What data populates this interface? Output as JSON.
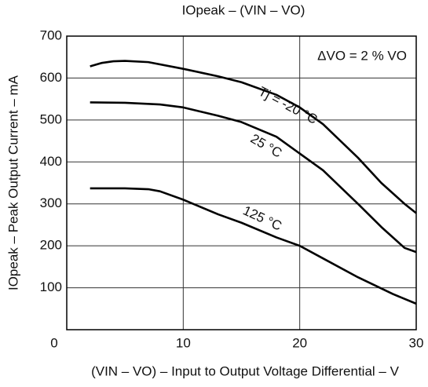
{
  "chart_data": {
    "type": "line",
    "title": "IOpeak – (VIN – VO)",
    "x_label": "(VIN – VO) – Input to Output Voltage Differential – V",
    "y_label": "IOpeak – Peak Output Current – mA",
    "annotations": [
      "ΔVO = 2 % VO",
      "Tj = -20 °C",
      "25 °C",
      "125 °C"
    ],
    "series": [
      {
        "name": "Tj = -20 °C",
        "color": "#000000",
        "x": [
          2,
          3,
          4,
          5,
          7,
          10,
          13,
          15,
          18,
          20,
          22,
          25,
          27,
          29,
          30
        ],
        "values": [
          628,
          636,
          640,
          641,
          638,
          622,
          604,
          590,
          560,
          530,
          490,
          410,
          350,
          300,
          278
        ]
      },
      {
        "name": "25 °C",
        "color": "#000000",
        "x": [
          2,
          5,
          8,
          10,
          13,
          15,
          18,
          20,
          22,
          25,
          27,
          29,
          30
        ],
        "values": [
          542,
          541,
          537,
          530,
          510,
          495,
          460,
          420,
          380,
          300,
          245,
          195,
          185
        ]
      },
      {
        "name": "125 °C",
        "color": "#000000",
        "x": [
          2,
          5,
          7,
          8,
          10,
          13,
          15,
          18,
          20,
          22,
          25,
          28,
          30
        ],
        "values": [
          337,
          337,
          335,
          330,
          310,
          275,
          255,
          220,
          200,
          170,
          125,
          85,
          62
        ]
      }
    ],
    "xlim": [
      0,
      30
    ],
    "xticks": [
      0,
      10,
      20,
      30
    ],
    "ylim": [
      0,
      700
    ],
    "yticks": [
      100,
      200,
      300,
      400,
      500,
      600,
      700
    ],
    "grid": true
  }
}
